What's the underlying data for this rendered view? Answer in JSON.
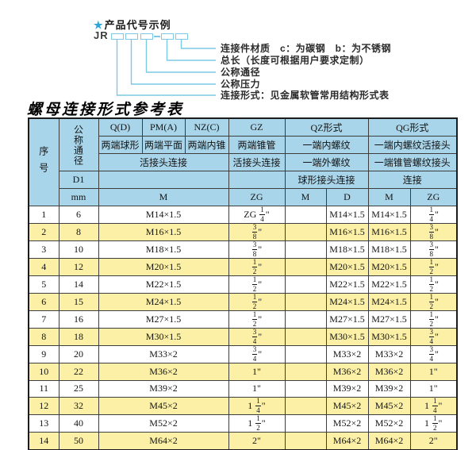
{
  "colors": {
    "header_blue": "#a8d5ea",
    "row_yellow": "#fbf0a6",
    "cyan_line": "#7cc9e4",
    "star_blue": "#2ca6db"
  },
  "diagram": {
    "star": "★",
    "title": "产品代号示例",
    "code_prefix": "JR",
    "labels": [
      "连接件材质　c：为碳钢　b：为不锈钢",
      "总长（长度可根据用户要求定制）",
      "公称通径",
      "公称压力",
      "连接形式：见金属软管常用结构形式表"
    ]
  },
  "table": {
    "title": "螺母连接形式参考表",
    "header": {
      "xuhao": "序号",
      "gongcheng_tongjing": "公称通径",
      "d1": "D1",
      "mm": "mm",
      "col_q": "Q(D)",
      "col_pm": "PM(A)",
      "col_nz": "NZ(C)",
      "col_gz": "GZ",
      "col_qz": "QZ形式",
      "col_qg": "QG形式",
      "q_sub": "两端球形",
      "pm_sub": "两端平面",
      "nz_sub": "两端内锥",
      "gz_sub": "两端锥管",
      "qz_sub1": "一端内螺纹",
      "qg_sub1": "一端内螺纹活接头",
      "union_conn": "活接头连接",
      "gz_conn": "活接头连接",
      "qz_sub2": "一端外螺纹",
      "qg_sub2": "一端锥管螺纹接头",
      "qz_conn": "球形接头连接",
      "qg_conn": "连接",
      "m_label": "M",
      "zg_label": "ZG",
      "qz_m_label": "M",
      "qz_d_label": "D",
      "qg_m_label": "M",
      "qg_zg_label": "ZG"
    },
    "rows": [
      {
        "no": "1",
        "mm": "6",
        "m": "M14×1.5",
        "gz": "ZG 1/4\"",
        "qz_m": "",
        "qz_d": "M14×1.5",
        "qg_m": "M14×1.5",
        "qg_zg": "1/4\""
      },
      {
        "no": "2",
        "mm": "8",
        "m": "M16×1.5",
        "gz": "3/8\"",
        "qz_m": "",
        "qz_d": "M16×1.5",
        "qg_m": "M16×1.5",
        "qg_zg": "3/8\""
      },
      {
        "no": "3",
        "mm": "10",
        "m": "M18×1.5",
        "gz": "3/8\"",
        "qz_m": "",
        "qz_d": "M18×1.5",
        "qg_m": "M18×1.5",
        "qg_zg": "3/8\""
      },
      {
        "no": "4",
        "mm": "12",
        "m": "M20×1.5",
        "gz": "1/2\"",
        "qz_m": "",
        "qz_d": "M20×1.5",
        "qg_m": "M20×1.5",
        "qg_zg": "1/2\""
      },
      {
        "no": "5",
        "mm": "14",
        "m": "M22×1.5",
        "gz": "1/2\"",
        "qz_m": "",
        "qz_d": "M22×1.5",
        "qg_m": "M22×1.5",
        "qg_zg": "1/2\""
      },
      {
        "no": "6",
        "mm": "15",
        "m": "M24×1.5",
        "gz": "1/2\"",
        "qz_m": "",
        "qz_d": "M24×1.5",
        "qg_m": "M24×1.5",
        "qg_zg": "1/2\""
      },
      {
        "no": "7",
        "mm": "16",
        "m": "M27×1.5",
        "gz": "1/2\"",
        "qz_m": "",
        "qz_d": "M27×1.5",
        "qg_m": "M27×1.5",
        "qg_zg": "1/2\""
      },
      {
        "no": "8",
        "mm": "18",
        "m": "M30×1.5",
        "gz": "3/4\"",
        "qz_m": "",
        "qz_d": "M30×1.5",
        "qg_m": "M30×1.5",
        "qg_zg": "3/4\""
      },
      {
        "no": "9",
        "mm": "20",
        "m": "M33×2",
        "gz": "3/4\"",
        "qz_m": "",
        "qz_d": "M33×2",
        "qg_m": "M33×2",
        "qg_zg": "3/4\""
      },
      {
        "no": "10",
        "mm": "22",
        "m": "M36×2",
        "gz": "1\"",
        "qz_m": "",
        "qz_d": "M36×2",
        "qg_m": "M36×2",
        "qg_zg": "1\""
      },
      {
        "no": "11",
        "mm": "25",
        "m": "M39×2",
        "gz": "1\"",
        "qz_m": "",
        "qz_d": "M39×2",
        "qg_m": "M39×2",
        "qg_zg": "1\""
      },
      {
        "no": "12",
        "mm": "32",
        "m": "M45×2",
        "gz": "1 1/4\"",
        "qz_m": "",
        "qz_d": "M45×2",
        "qg_m": "M45×2",
        "qg_zg": "1 1/4\""
      },
      {
        "no": "13",
        "mm": "40",
        "m": "M52×2",
        "gz": "1 1/2\"",
        "qz_m": "",
        "qz_d": "M52×2",
        "qg_m": "M52×2",
        "qg_zg": "1 1/2\""
      },
      {
        "no": "14",
        "mm": "50",
        "m": "M64×2",
        "gz": "2\"",
        "qz_m": "",
        "qz_d": "M64×2",
        "qg_m": "M64×2",
        "qg_zg": "2\""
      }
    ]
  }
}
